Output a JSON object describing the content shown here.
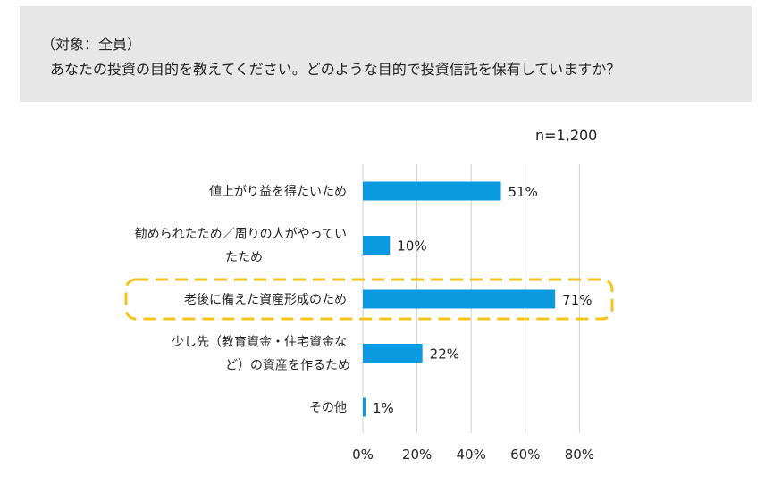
{
  "header": {
    "subtitle": "（対象：全員）",
    "title": "あなたの投資の目的を教えてください。どのような目的で投資信託を保有していますか？"
  },
  "sample_size": "n=1,200",
  "colors": {
    "bar": "#0b9ae0",
    "highlight": "#f4c31c",
    "grid": "#cfcfcf",
    "header_bg": "#e7e7e7"
  },
  "chart_data": {
    "type": "bar",
    "orientation": "horizontal",
    "categories": [
      [
        "値上がり益を得たいため"
      ],
      [
        "勧められたため／周りの人がやってい",
        "たため"
      ],
      [
        "老後に備えた資産形成のため"
      ],
      [
        "少し先（教育資金・住宅資金な",
        "ど）の資産を作るため"
      ],
      [
        "その他"
      ]
    ],
    "values": [
      51,
      10,
      71,
      22,
      1
    ],
    "value_labels": [
      "51%",
      "10%",
      "71%",
      "22%",
      "1%"
    ],
    "xlim": [
      0,
      80
    ],
    "xticks": [
      0,
      20,
      40,
      60,
      80
    ],
    "xtick_labels": [
      "0%",
      "20%",
      "40%",
      "60%",
      "80%"
    ],
    "highlighted_index": 2,
    "grid": "vertical"
  }
}
